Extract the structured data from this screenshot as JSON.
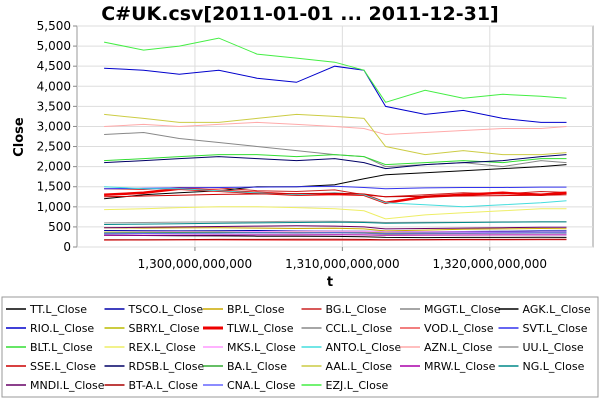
{
  "chart_data": {
    "type": "line",
    "title": "C#UK.csv[2011-01-01 ... 2011-12-31]",
    "xlabel": "t",
    "ylabel": "Close",
    "xlim": [
      1292000000000,
      1327000000000
    ],
    "ylim": [
      0,
      5500
    ],
    "x_ticks": [
      {
        "value": 1300000000000,
        "label": "1,300,000,000,000"
      },
      {
        "value": 1310000000000,
        "label": "1,310,000,000,000"
      },
      {
        "value": 1320000000000,
        "label": "1,320,000,000,000"
      }
    ],
    "y_ticks": [
      {
        "value": 0,
        "label": "0"
      },
      {
        "value": 500,
        "label": "500"
      },
      {
        "value": 1000,
        "label": "1,000"
      },
      {
        "value": 1500,
        "label": "1,500"
      },
      {
        "value": 2000,
        "label": "2,000"
      },
      {
        "value": 2500,
        "label": "2,500"
      },
      {
        "value": 3000,
        "label": "3,000"
      },
      {
        "value": 3500,
        "label": "3,500"
      },
      {
        "value": 4000,
        "label": "4,000"
      },
      {
        "value": 4500,
        "label": "4,500"
      },
      {
        "value": 5000,
        "label": "5,000"
      },
      {
        "value": 5500,
        "label": "5,500"
      }
    ],
    "grid": true,
    "legend_position": "bottom",
    "legend_columns": 6,
    "x_points": [
      1293840000000,
      1296518400000,
      1298937600000,
      1301616000000,
      1304208000000,
      1306886400000,
      1309478400000,
      1311465600000,
      1312934400000,
      1315612800000,
      1318204800000,
      1320883200000,
      1323475200000,
      1325203200000
    ],
    "series": [
      {
        "name": "TT.L_Close",
        "color": "#000000",
        "values": [
          290,
          285,
          280,
          275,
          270,
          268,
          265,
          255,
          240,
          235,
          238,
          240,
          242,
          240
        ]
      },
      {
        "name": "TSCO.L_Close",
        "color": "#0000aa",
        "values": [
          410,
          405,
          400,
          405,
          410,
          400,
          395,
          390,
          385,
          380,
          385,
          390,
          400,
          400
        ]
      },
      {
        "name": "BP.L_Close",
        "color": "#ccaa00",
        "values": [
          480,
          470,
          475,
          480,
          470,
          460,
          465,
          450,
          400,
          420,
          440,
          450,
          460,
          455
        ]
      },
      {
        "name": "BG.L_Close",
        "color": "#cc2222",
        "values": [
          1450,
          1430,
          1480,
          1470,
          1400,
          1380,
          1420,
          1300,
          1250,
          1300,
          1350,
          1320,
          1380,
          1360
        ]
      },
      {
        "name": "MGGT.L_Close",
        "color": "#888888",
        "values": [
          330,
          335,
          340,
          345,
          350,
          345,
          350,
          340,
          320,
          330,
          335,
          340,
          345,
          340
        ]
      },
      {
        "name": "AGK.L_Close",
        "color": "#000000",
        "values": [
          1200,
          1300,
          1350,
          1400,
          1500,
          1500,
          1550,
          1700,
          1800,
          1850,
          1900,
          1950,
          2000,
          2050
        ]
      },
      {
        "name": "RIO.L_Close",
        "color": "#0000cc",
        "values": [
          4450,
          4400,
          4300,
          4400,
          4200,
          4100,
          4500,
          4400,
          3500,
          3300,
          3400,
          3200,
          3100,
          3100
        ]
      },
      {
        "name": "SBRY.L_Close",
        "color": "#bbbb00",
        "values": [
          370,
          375,
          380,
          378,
          372,
          370,
          368,
          365,
          355,
          350,
          352,
          350,
          348,
          350
        ]
      },
      {
        "name": "TLW.L_Close",
        "color": "#ee0000",
        "values": [
          1300,
          1350,
          1450,
          1400,
          1350,
          1300,
          1320,
          1300,
          1100,
          1250,
          1300,
          1350,
          1300,
          1350
        ]
      },
      {
        "name": "CCL.L_Close",
        "color": "#888888",
        "values": [
          2800,
          2850,
          2700,
          2600,
          2500,
          2400,
          2300,
          2250,
          2000,
          2050,
          2100,
          2000,
          2150,
          2100
        ]
      },
      {
        "name": "VOD.L_Close",
        "color": "#ee5555",
        "values": [
          170,
          172,
          175,
          174,
          172,
          170,
          168,
          170,
          172,
          175,
          176,
          177,
          178,
          178
        ]
      },
      {
        "name": "SVT.L_Close",
        "color": "#3333ee",
        "values": [
          1450,
          1460,
          1470,
          1480,
          1490,
          1500,
          1510,
          1480,
          1450,
          1470,
          1480,
          1480,
          1490,
          1490
        ]
      },
      {
        "name": "BLT.L_Close",
        "color": "#33dd33",
        "values": [
          2150,
          2200,
          2250,
          2300,
          2300,
          2250,
          2300,
          2250,
          2050,
          2100,
          2150,
          2100,
          2200,
          2200
        ]
      },
      {
        "name": "REX.L_Close",
        "color": "#eeee66",
        "values": [
          930,
          950,
          980,
          1000,
          1000,
          980,
          950,
          900,
          700,
          800,
          850,
          900,
          950,
          950
        ]
      },
      {
        "name": "MKS.L_Close",
        "color": "#ff99ff",
        "values": [
          360,
          370,
          375,
          380,
          385,
          390,
          392,
          388,
          380,
          378,
          375,
          370,
          368,
          370
        ]
      },
      {
        "name": "ANTO.L_Close",
        "color": "#44dddd",
        "values": [
          1500,
          1450,
          1450,
          1400,
          1350,
          1300,
          1350,
          1300,
          1100,
          1050,
          1000,
          1050,
          1100,
          1150
        ]
      },
      {
        "name": "AZN.L_Close",
        "color": "#ffaaaa",
        "values": [
          3000,
          3050,
          3000,
          3050,
          3100,
          3050,
          3000,
          2950,
          2800,
          2850,
          2900,
          2950,
          2950,
          3000
        ]
      },
      {
        "name": "UU.L_Close",
        "color": "#999999",
        "values": [
          600,
          610,
          620,
          625,
          630,
          640,
          640,
          630,
          610,
          615,
          620,
          625,
          630,
          630
        ]
      },
      {
        "name": "SSE.L_Close",
        "color": "#cc0000",
        "values": [
          1250,
          1270,
          1290,
          1310,
          1320,
          1330,
          1340,
          1320,
          1250,
          1260,
          1270,
          1280,
          1290,
          1300
        ]
      },
      {
        "name": "RDSB.L_Close",
        "color": "#000066",
        "values": [
          2100,
          2150,
          2200,
          2250,
          2200,
          2150,
          2200,
          2100,
          1950,
          2050,
          2100,
          2150,
          2250,
          2300
        ]
      },
      {
        "name": "BA.L_Close",
        "color": "#33aa33",
        "values": [
          350,
          355,
          360,
          365,
          360,
          355,
          360,
          350,
          330,
          340,
          345,
          350,
          355,
          355
        ]
      },
      {
        "name": "AAL.L_Close",
        "color": "#cccc44",
        "values": [
          3300,
          3200,
          3100,
          3100,
          3200,
          3300,
          3250,
          3200,
          2500,
          2300,
          2400,
          2300,
          2300,
          2350
        ]
      },
      {
        "name": "MRW.L_Close",
        "color": "#aa00aa",
        "values": [
          290,
          292,
          295,
          298,
          300,
          302,
          304,
          300,
          290,
          295,
          298,
          300,
          302,
          300
        ]
      },
      {
        "name": "NG.L_Close",
        "color": "#008888",
        "values": [
          560,
          570,
          580,
          590,
          600,
          610,
          620,
          610,
          590,
          600,
          610,
          620,
          625,
          625
        ]
      },
      {
        "name": "MNDI.L_Close",
        "color": "#660066",
        "values": [
          480,
          490,
          500,
          510,
          520,
          530,
          520,
          500,
          450,
          460,
          470,
          480,
          490,
          490
        ]
      },
      {
        "name": "BT-A.L_Close",
        "color": "#aa0000",
        "values": [
          180,
          182,
          185,
          188,
          190,
          192,
          194,
          190,
          180,
          185,
          188,
          190,
          192,
          192
        ]
      },
      {
        "name": "CNA.L_Close",
        "color": "#6666ff",
        "values": [
          330,
          335,
          340,
          345,
          350,
          352,
          354,
          350,
          340,
          345,
          348,
          350,
          352,
          352
        ]
      },
      {
        "name": "EZJ.L_Close",
        "color": "#44ee44",
        "values": [
          5100,
          4900,
          5000,
          5200,
          4800,
          4700,
          4600,
          4400,
          3600,
          3900,
          3700,
          3800,
          3750,
          3700
        ]
      }
    ]
  }
}
